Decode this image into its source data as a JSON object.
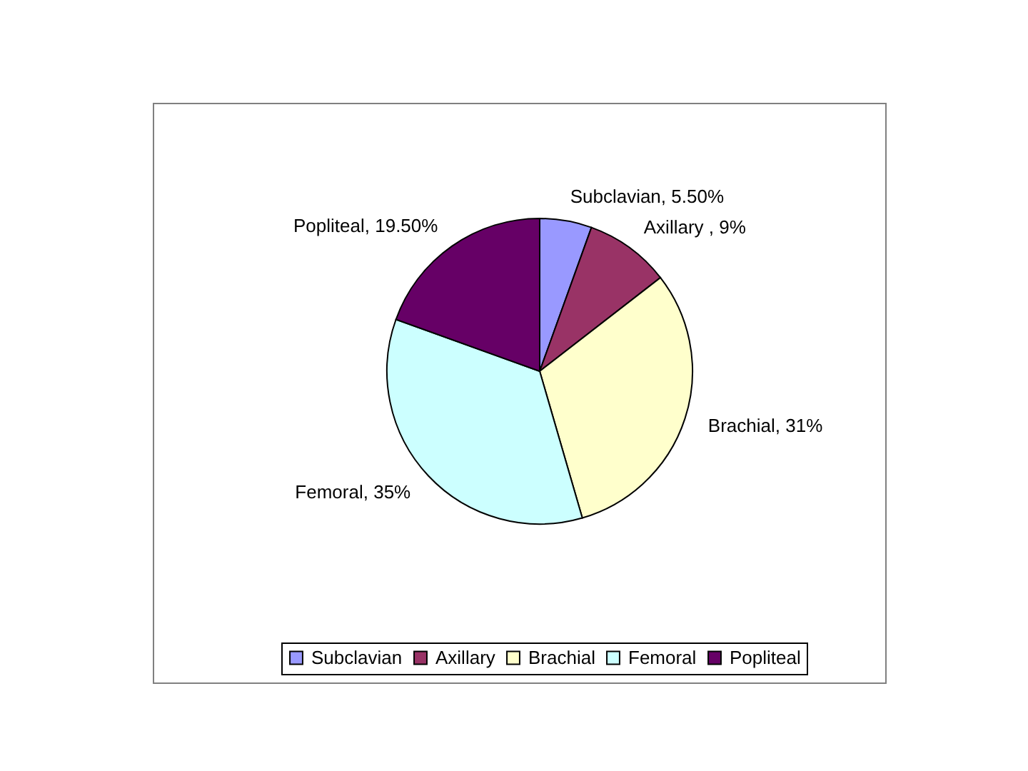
{
  "chart_data": {
    "type": "pie",
    "categories": [
      "Subclavian",
      "Axillary",
      "Brachial",
      "Femoral",
      "Popliteal"
    ],
    "values": [
      5.5,
      9,
      31,
      35,
      19.5
    ],
    "colors": [
      "#9999ff",
      "#993366",
      "#ffffcc",
      "#ccffff",
      "#660066"
    ],
    "value_labels": [
      "Subclavian, 5.50%",
      "Axillary , 9%",
      "Brachial, 31%",
      "Femoral, 35%",
      "Popliteal, 19.50%"
    ],
    "legend": "bottom"
  }
}
